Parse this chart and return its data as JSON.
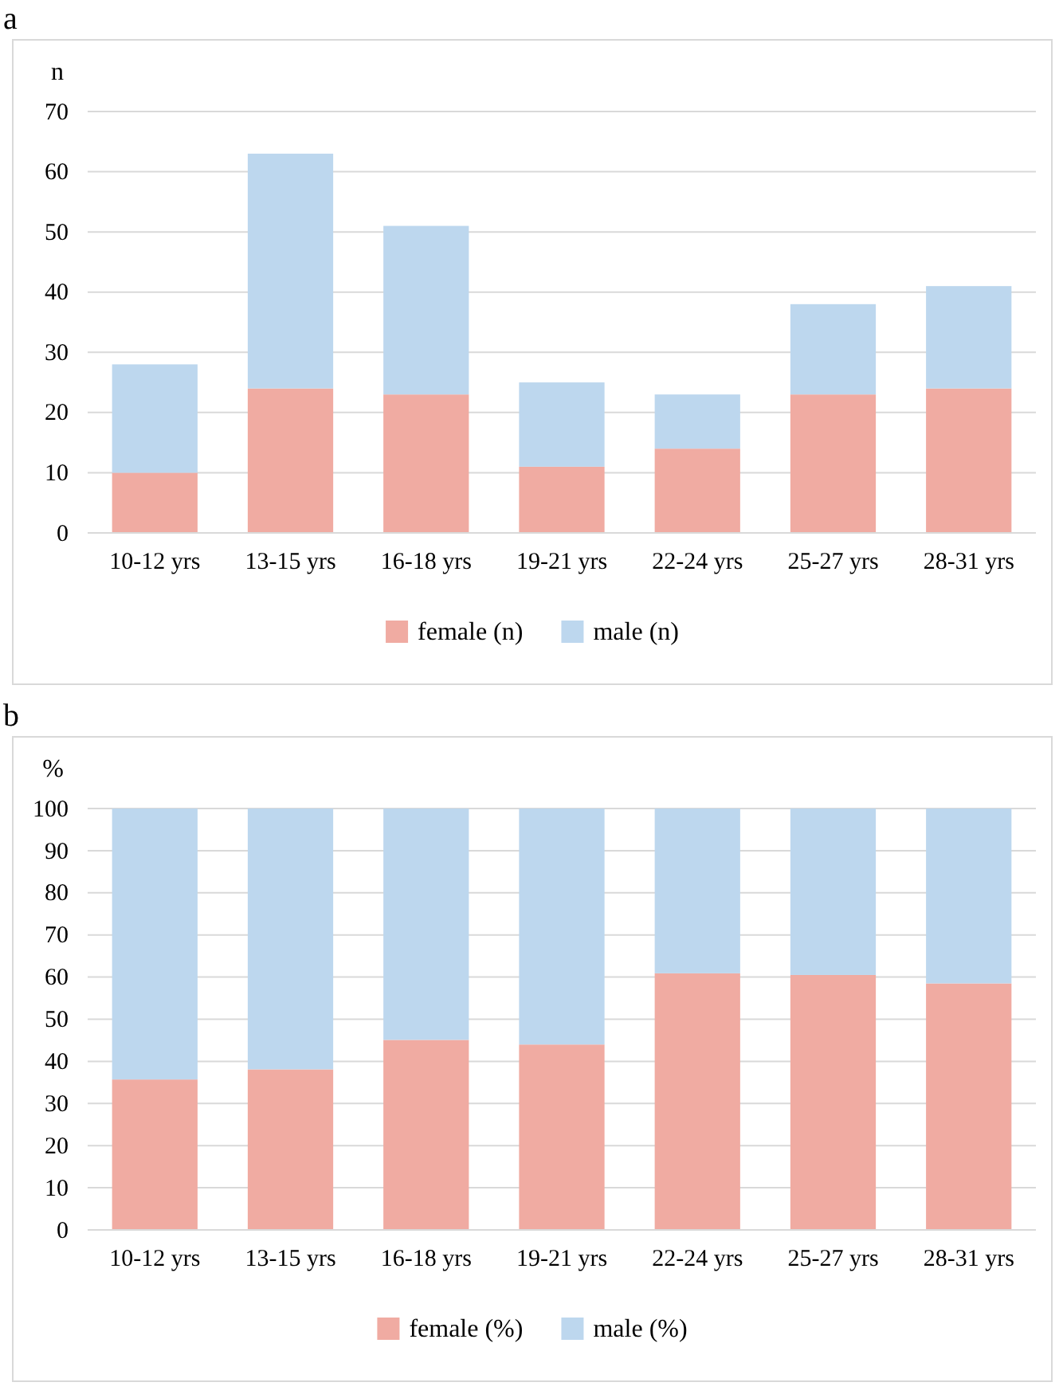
{
  "chart_data": [
    {
      "type": "bar",
      "title": "a",
      "ylabel": "n",
      "categories": [
        "10-12 yrs",
        "13-15 yrs",
        "16-18 yrs",
        "19-21 yrs",
        "22-24 yrs",
        "25-27 yrs",
        "28-31 yrs"
      ],
      "stacked": true,
      "series": [
        {
          "name": "female (n)",
          "color": "#f0aba2",
          "values": [
            10,
            24,
            23,
            11,
            14,
            23,
            24
          ]
        },
        {
          "name": "male (n)",
          "color": "#bdd7ee",
          "values": [
            18,
            39,
            28,
            14,
            9,
            15,
            17
          ]
        }
      ],
      "ylim": [
        0,
        70
      ],
      "yticks": [
        0,
        10,
        20,
        30,
        40,
        50,
        60,
        70
      ],
      "grid": "y",
      "legend": "bottom"
    },
    {
      "type": "bar",
      "title": "b",
      "ylabel": "%",
      "categories": [
        "10-12 yrs",
        "13-15 yrs",
        "16-18 yrs",
        "19-21 yrs",
        "22-24 yrs",
        "25-27 yrs",
        "28-31 yrs"
      ],
      "stacked": true,
      "series": [
        {
          "name": "female (%)",
          "color": "#f0aba2",
          "values": [
            35.7,
            38.1,
            45.1,
            44,
            60.9,
            60.5,
            58.5
          ]
        },
        {
          "name": "male (%)",
          "color": "#bdd7ee",
          "values": [
            64.3,
            61.9,
            54.9,
            56,
            39.1,
            39.5,
            41.5
          ]
        }
      ],
      "ylim": [
        0,
        100
      ],
      "yticks": [
        0,
        10,
        20,
        30,
        40,
        50,
        60,
        70,
        80,
        90,
        100
      ],
      "grid": "y",
      "legend": "bottom"
    }
  ]
}
